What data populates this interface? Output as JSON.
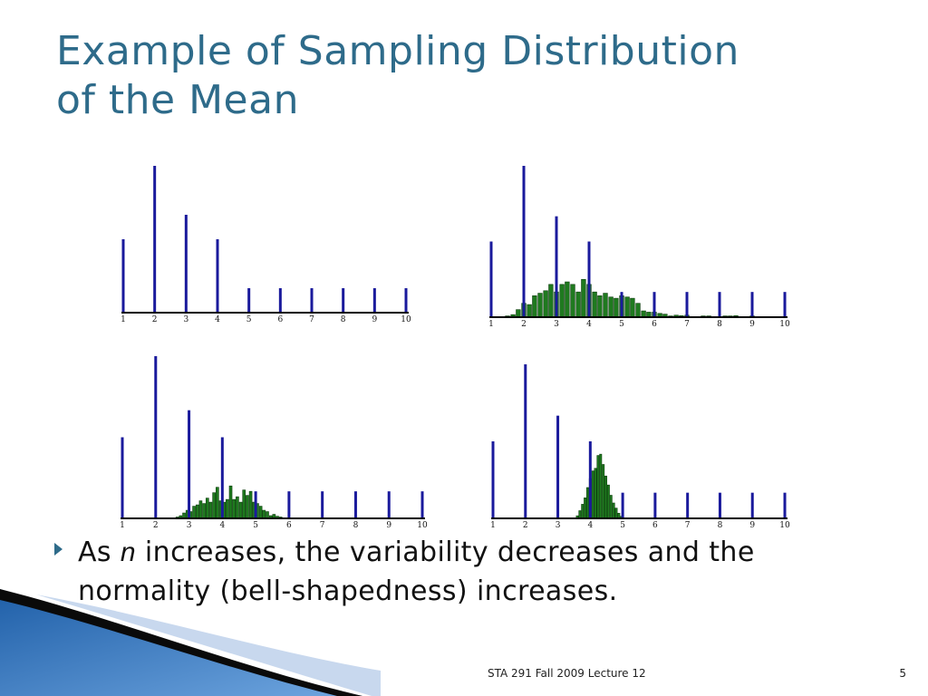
{
  "slide": {
    "title_line1": "Example of Sampling Distribution",
    "title_line2": "of the Mean",
    "bullet_prefix": "As ",
    "bullet_var": "n",
    "bullet_rest": " increases, the variability decreases and the normality (bell-shapedness) increases.",
    "footer": "STA 291 Fall 2009 Lecture 12",
    "slide_number": "5",
    "colors": {
      "title": "#2e6b8a",
      "population_bars": "#1a1a9c",
      "sample_mean_bars": "#1f7a1f",
      "sample_mean_outline": "#0b3d0b",
      "axis": "#000000"
    }
  },
  "chart_data": [
    {
      "type": "bar",
      "panel": "top-left",
      "x_ticks": [
        "1",
        "2",
        "3",
        "4",
        "5",
        "6",
        "7",
        "8",
        "9",
        "10"
      ],
      "population": {
        "x": [
          1,
          2,
          3,
          4,
          5,
          6,
          7,
          8,
          9,
          10
        ],
        "values": [
          3,
          6,
          4,
          3,
          1,
          1,
          1,
          1,
          1,
          1
        ]
      },
      "ylim": [
        0,
        6
      ]
    },
    {
      "type": "bar",
      "panel": "top-right",
      "x_ticks": [
        "1",
        "2",
        "3",
        "4",
        "5",
        "6",
        "7",
        "8",
        "9",
        "10"
      ],
      "population": {
        "x": [
          1,
          2,
          3,
          4,
          5,
          6,
          7,
          8,
          9,
          10
        ],
        "values": [
          3,
          6,
          4,
          3,
          1,
          1,
          1,
          1,
          1,
          1
        ]
      },
      "sample_means": {
        "x": [
          1.5,
          1.67,
          1.83,
          2.0,
          2.17,
          2.33,
          2.5,
          2.67,
          2.83,
          3.0,
          3.17,
          3.33,
          3.5,
          3.67,
          3.83,
          4.0,
          4.17,
          4.33,
          4.5,
          4.67,
          4.83,
          5.0,
          5.17,
          5.33,
          5.5,
          5.67,
          5.83,
          6.0,
          6.17,
          6.33,
          6.5,
          6.67,
          6.83,
          7.0,
          7.5,
          7.67,
          8.17,
          8.33,
          8.5,
          9.0
        ],
        "values": [
          0.05,
          0.1,
          0.3,
          0.55,
          0.5,
          0.85,
          0.95,
          1.05,
          1.3,
          1.0,
          1.3,
          1.4,
          1.3,
          1.0,
          1.5,
          1.3,
          1.0,
          0.85,
          0.95,
          0.8,
          0.75,
          0.85,
          0.8,
          0.75,
          0.55,
          0.25,
          0.2,
          0.2,
          0.15,
          0.12,
          0.05,
          0.08,
          0.06,
          0.08,
          0.05,
          0.05,
          0.05,
          0.05,
          0.06,
          0.05
        ]
      },
      "ylim": [
        0,
        6
      ]
    },
    {
      "type": "bar",
      "panel": "bottom-left",
      "x_ticks": [
        "1",
        "2",
        "3",
        "4",
        "5",
        "6",
        "7",
        "8",
        "9",
        "10"
      ],
      "population": {
        "x": [
          1,
          2,
          3,
          4,
          5,
          6,
          7,
          8,
          9,
          10
        ],
        "values": [
          3,
          6,
          4,
          3,
          1,
          1,
          1,
          1,
          1,
          1
        ]
      },
      "sample_means": {
        "x": [
          2.65,
          2.75,
          2.85,
          2.95,
          3.05,
          3.15,
          3.25,
          3.35,
          3.45,
          3.55,
          3.65,
          3.75,
          3.85,
          3.95,
          4.05,
          4.15,
          4.25,
          4.35,
          4.45,
          4.55,
          4.65,
          4.75,
          4.85,
          4.95,
          5.05,
          5.15,
          5.25,
          5.35,
          5.45,
          5.55,
          5.65,
          5.75
        ],
        "values": [
          0.05,
          0.1,
          0.2,
          0.3,
          0.25,
          0.45,
          0.5,
          0.65,
          0.55,
          0.75,
          0.6,
          0.95,
          1.15,
          0.65,
          0.6,
          0.7,
          1.2,
          0.7,
          0.8,
          0.6,
          1.05,
          0.85,
          1.0,
          0.6,
          0.55,
          0.45,
          0.3,
          0.25,
          0.1,
          0.15,
          0.08,
          0.05
        ]
      },
      "ylim": [
        0,
        6
      ]
    },
    {
      "type": "bar",
      "panel": "bottom-right",
      "x_ticks": [
        "1",
        "2",
        "3",
        "4",
        "5",
        "6",
        "7",
        "8",
        "9",
        "10"
      ],
      "population": {
        "x": [
          1,
          2,
          3,
          4,
          5,
          6,
          7,
          8,
          9,
          10
        ],
        "values": [
          3,
          6,
          4,
          3,
          1,
          1,
          1,
          1,
          1,
          1
        ]
      },
      "sample_means": {
        "x": [
          3.6,
          3.68,
          3.76,
          3.84,
          3.92,
          4.0,
          4.08,
          4.16,
          4.24,
          4.32,
          4.4,
          4.48,
          4.56,
          4.64,
          4.72,
          4.8,
          4.88,
          4.96
        ],
        "values": [
          0.1,
          0.3,
          0.55,
          0.8,
          1.2,
          1.55,
          1.85,
          1.95,
          2.45,
          2.5,
          2.1,
          1.65,
          1.3,
          0.9,
          0.6,
          0.4,
          0.2,
          0.08
        ]
      },
      "ylim": [
        0,
        6
      ]
    }
  ]
}
